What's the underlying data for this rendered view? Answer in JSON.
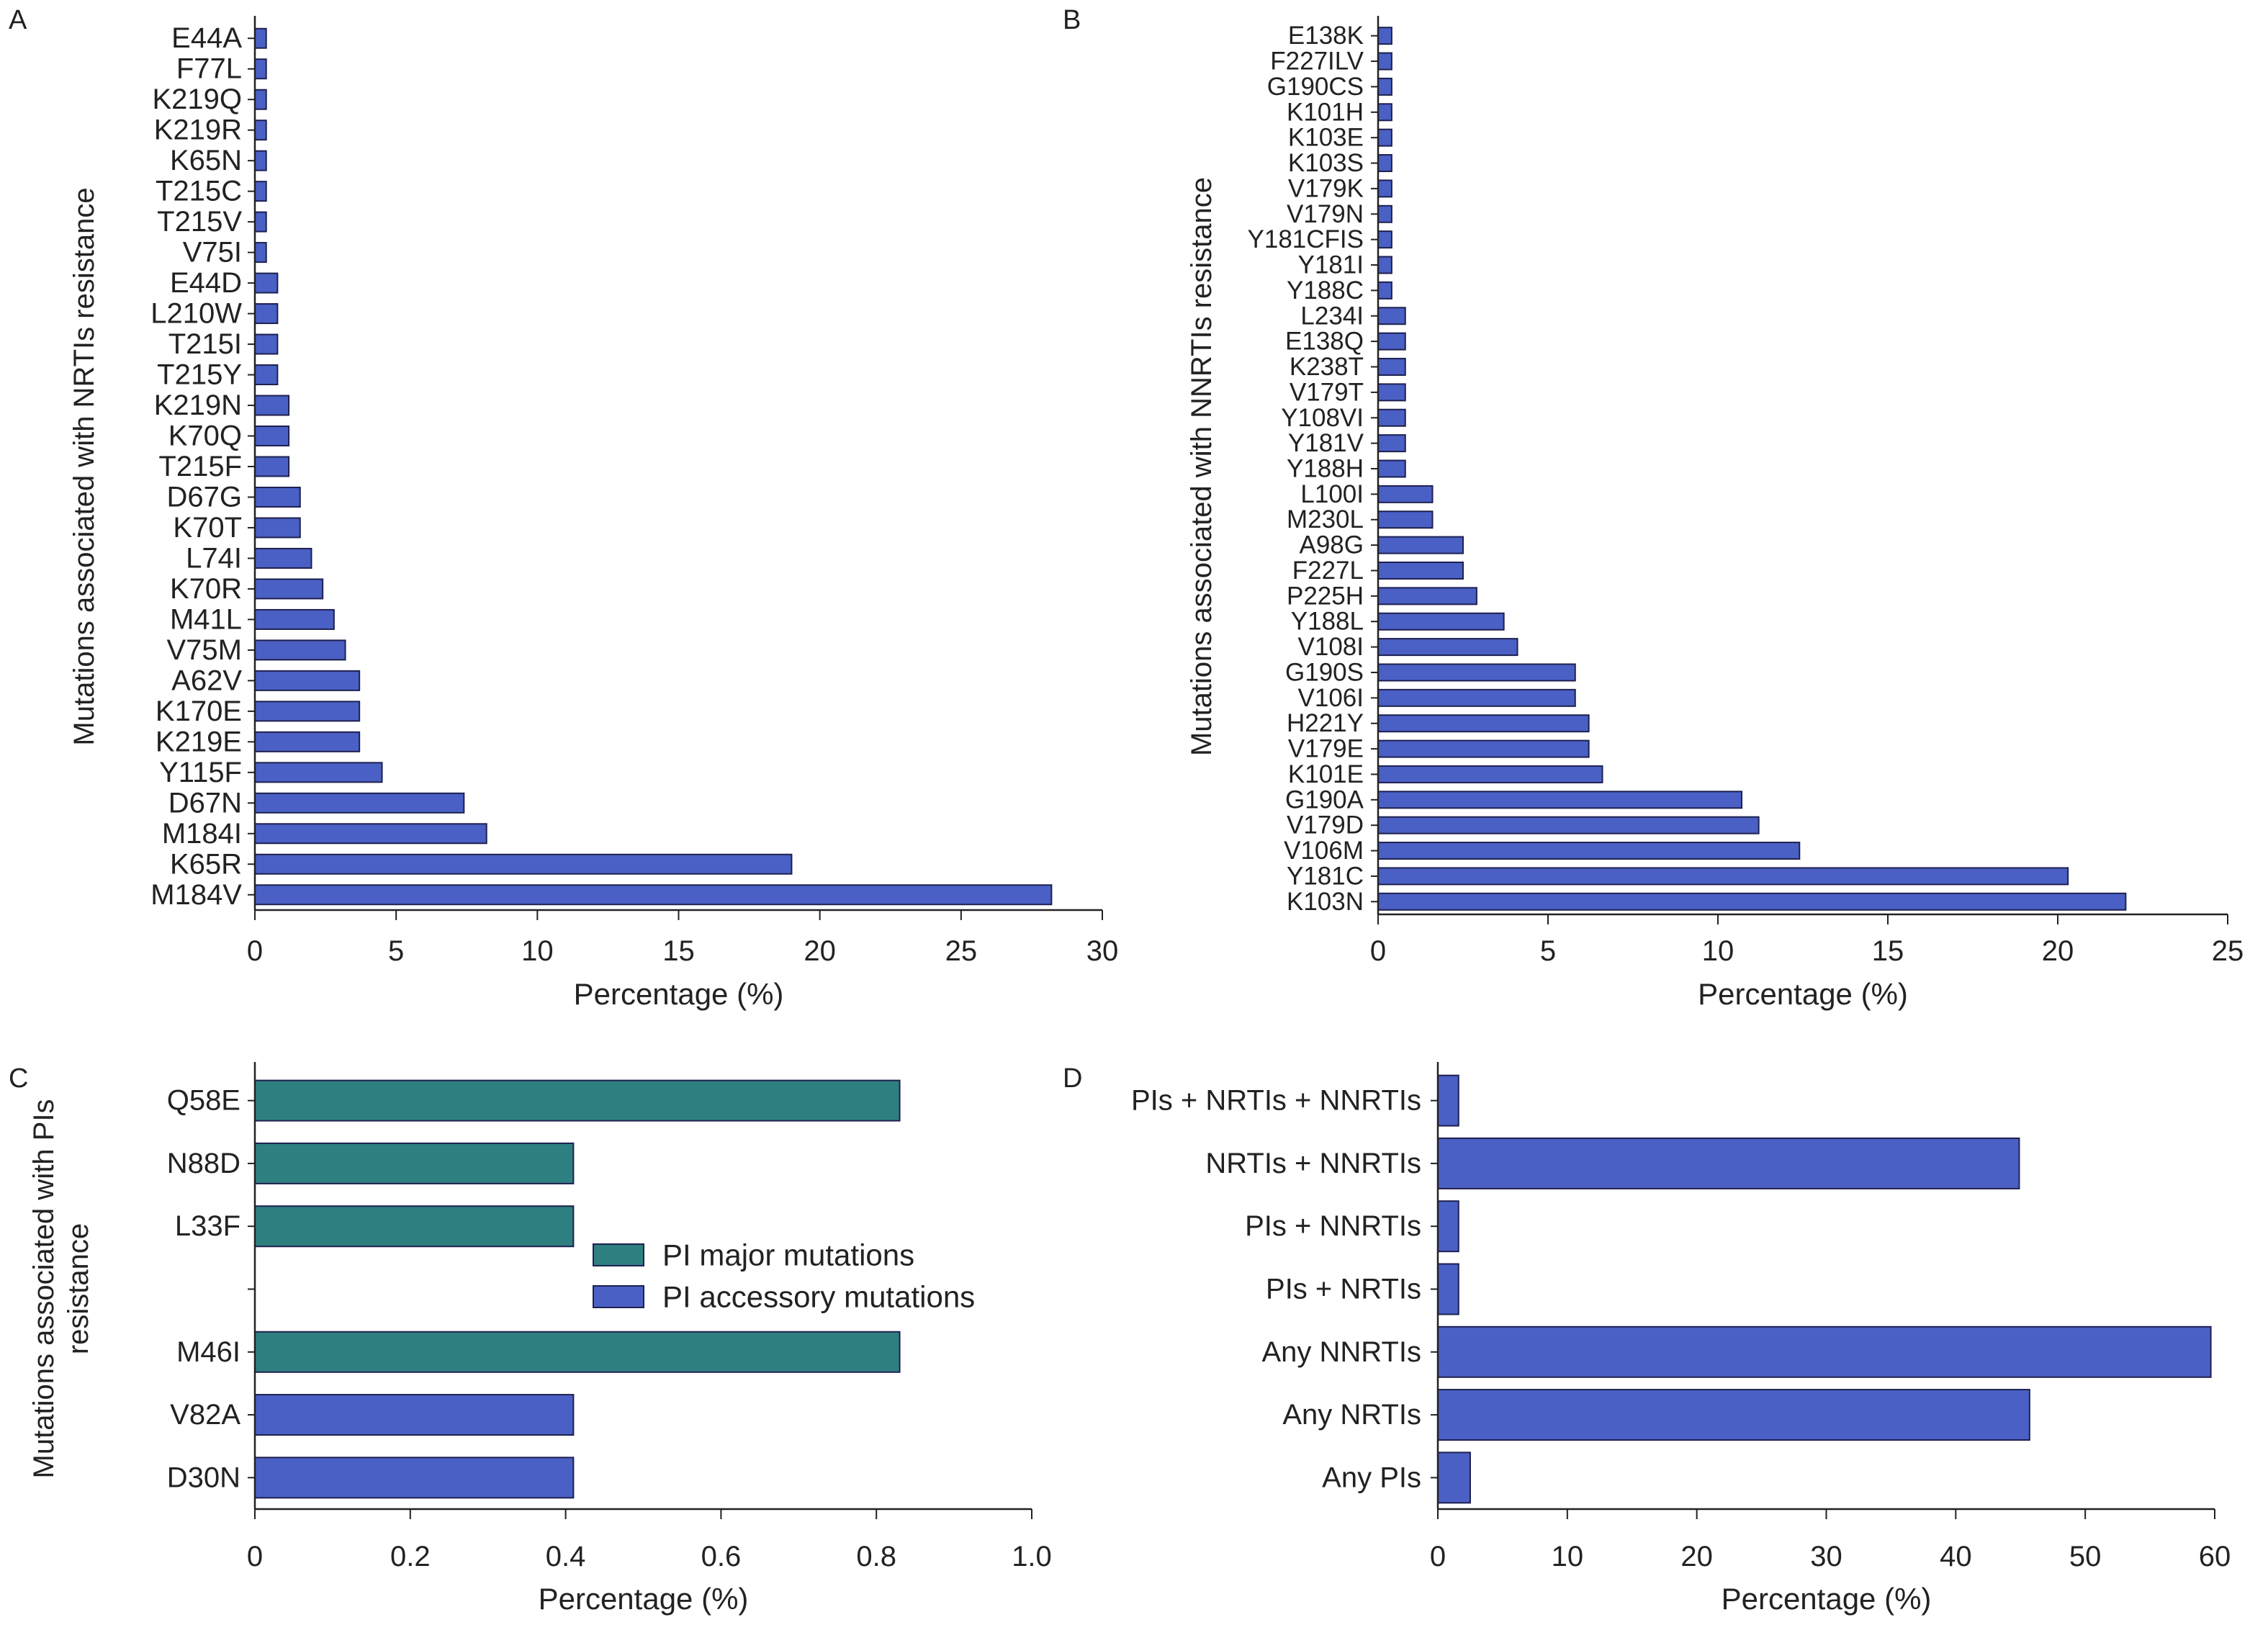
{
  "colors": {
    "blue_bar": "#4a60c4",
    "green_bar": "#2e8080",
    "bar_stroke": "#1e2050",
    "axis": "#222222"
  },
  "chart_data": [
    {
      "id": "A",
      "panel_label": "A",
      "type": "bar",
      "orientation": "horizontal",
      "ylabel": "Mutations associated with NRTIs resistance",
      "xlabel": "Percentage (%)",
      "xlim": [
        0,
        30
      ],
      "xticks": [
        0,
        5,
        10,
        15,
        20,
        25,
        30
      ],
      "tick_decimals": 0,
      "categories": [
        "E44A",
        "F77L",
        "K219Q",
        "K219R",
        "K65N",
        "T215C",
        "T215V",
        "V75I",
        "E44D",
        "L210W",
        "T215I",
        "T215Y",
        "K219N",
        "K70Q",
        "T215F",
        "D67G",
        "K70T",
        "L74I",
        "K70R",
        "M41L",
        "V75M",
        "A62V",
        "K170E",
        "K219E",
        "Y115F",
        "D67N",
        "M184I",
        "K65R",
        "M184V"
      ],
      "values": [
        0.4,
        0.4,
        0.4,
        0.4,
        0.4,
        0.4,
        0.4,
        0.4,
        0.8,
        0.8,
        0.8,
        0.8,
        1.2,
        1.2,
        1.2,
        1.6,
        1.6,
        2.0,
        2.4,
        2.8,
        3.2,
        3.7,
        3.7,
        3.7,
        4.5,
        7.4,
        8.2,
        19.0,
        28.2
      ],
      "grid": false
    },
    {
      "id": "B",
      "panel_label": "B",
      "type": "bar",
      "orientation": "horizontal",
      "ylabel": "Mutations associated with NNRTIs resistance",
      "xlabel": "Percentage (%)",
      "xlim": [
        0,
        25
      ],
      "xticks": [
        0,
        5,
        10,
        15,
        20,
        25
      ],
      "tick_decimals": 0,
      "categories": [
        "E138K",
        "F227ILV",
        "G190CS",
        "K101H",
        "K103E",
        "K103S",
        "V179K",
        "V179N",
        "Y181CFIS",
        "Y181I",
        "Y188C",
        "L234I",
        "E138Q",
        "K238T",
        "V179T",
        "Y108VI",
        "Y181V",
        "Y188H",
        "L100I",
        "M230L",
        "A98G",
        "F227L",
        "P225H",
        "Y188L",
        "V108I",
        "G190S",
        "V106I",
        "H221Y",
        "V179E",
        "K101E",
        "G190A",
        "V179D",
        "V106M",
        "Y181C",
        "K103N"
      ],
      "values": [
        0.4,
        0.4,
        0.4,
        0.4,
        0.4,
        0.4,
        0.4,
        0.4,
        0.4,
        0.4,
        0.4,
        0.8,
        0.8,
        0.8,
        0.8,
        0.8,
        0.8,
        0.8,
        1.6,
        1.6,
        2.5,
        2.5,
        2.9,
        3.7,
        4.1,
        5.8,
        5.8,
        6.2,
        6.2,
        6.6,
        10.7,
        11.2,
        12.4,
        20.3,
        22.0
      ],
      "grid": false
    },
    {
      "id": "C",
      "panel_label": "C",
      "type": "bar",
      "orientation": "horizontal",
      "ylabel": "Mutations associated with PIs  resistance",
      "xlabel": "Percentage (%)",
      "xlim": [
        0,
        1.0
      ],
      "xticks": [
        0,
        0.2,
        0.4,
        0.6,
        0.8,
        1.0
      ],
      "tick_decimals": 1,
      "categories": [
        "Q58E",
        "N88D",
        "L33F",
        "",
        "M46I",
        "V82A",
        "D30N"
      ],
      "values": [
        0.83,
        0.41,
        0.41,
        null,
        0.83,
        0.41,
        0.41
      ],
      "groups": [
        "major",
        "major",
        "major",
        null,
        "major",
        "accessory",
        "accessory"
      ],
      "legend": [
        {
          "key": "major",
          "label": "PI major mutations"
        },
        {
          "key": "accessory",
          "label": "PI accessory mutations"
        }
      ],
      "legend_position": "center-right",
      "grid": false
    },
    {
      "id": "D",
      "panel_label": "D",
      "type": "bar",
      "orientation": "horizontal",
      "ylabel": "",
      "xlabel": "Percentage (%)",
      "xlim": [
        0,
        60
      ],
      "xticks": [
        0,
        10,
        20,
        30,
        40,
        50,
        60
      ],
      "tick_decimals": 0,
      "categories": [
        "PIs + NRTIs + NNRTIs",
        "NRTIs + NNRTIs",
        "PIs + NNRTIs",
        "PIs + NRTIs",
        "Any NNRTIs",
        "Any NRTIs",
        "Any PIs"
      ],
      "values": [
        1.6,
        44.9,
        1.6,
        1.6,
        59.7,
        45.7,
        2.5
      ],
      "grid": false
    }
  ]
}
